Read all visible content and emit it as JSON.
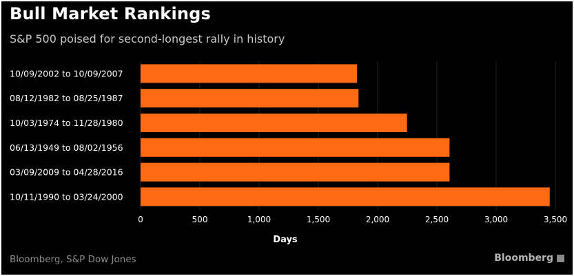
{
  "title": "Bull Market Rankings",
  "subtitle": "S&P 500 poised for second-longest rally in history",
  "source": "Bloomberg, S&P Dow Jones",
  "brand": "Bloomberg",
  "colors": {
    "bar": "#ff6a13",
    "background": "#000000",
    "text": "#ffffff",
    "grid": "#222222"
  },
  "chart_data": {
    "type": "bar",
    "orientation": "horizontal",
    "categories": [
      "10/09/2002 to 10/09/2007",
      "08/12/1982 to 08/25/1987",
      "10/03/1974 to 11/28/1980",
      "06/13/1949 to 08/02/1956",
      "03/09/2009 to 04/28/2016",
      "10/11/1990 to 03/24/2000"
    ],
    "values": [
      1826,
      1839,
      2248,
      2607,
      2607,
      3452
    ],
    "xlabel": "Days",
    "ylabel": "",
    "xlim": [
      0,
      3500
    ],
    "xticks": [
      0,
      500,
      1000,
      1500,
      2000,
      2500,
      3000,
      3500
    ],
    "xtick_labels": [
      "0",
      "500",
      "1,000",
      "1,500",
      "2,000",
      "2,500",
      "3,000",
      "3,500"
    ],
    "grid": true
  }
}
